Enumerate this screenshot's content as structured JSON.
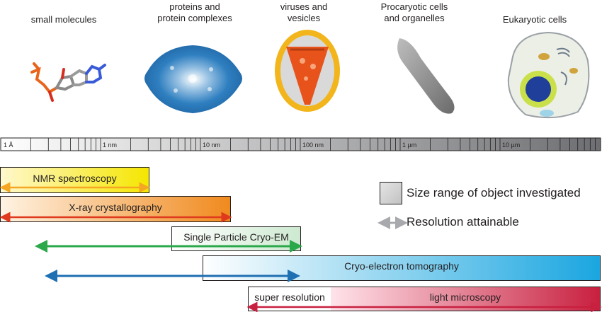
{
  "categories": [
    {
      "id": "small",
      "lines": [
        "small molecules"
      ]
    },
    {
      "id": "proteins",
      "lines": [
        "proteins and",
        "protein complexes"
      ]
    },
    {
      "id": "viruses",
      "lines": [
        "viruses and",
        "vesicles"
      ]
    },
    {
      "id": "procaryotic",
      "lines": [
        "Procaryotic cells",
        "and organelles"
      ]
    },
    {
      "id": "eukaryotic",
      "lines": [
        "Eukaryotic cells"
      ]
    }
  ],
  "scale": {
    "labels": [
      "1 Å",
      "1 nm",
      "10 nm",
      "100 nm",
      "1 µm",
      "10 µm"
    ]
  },
  "methods": {
    "nmr": "NMR spectroscopy",
    "xray": "X-ray crystallography",
    "spa": "Single Particle Cryo-EM",
    "cet": "Cryo-electron tomography",
    "super": "super resolution",
    "light": "light microscopy"
  },
  "legend": {
    "size_range": "Size range of object investigated",
    "resolution": "Resolution attainable"
  },
  "colors": {
    "nmr": "#f5e600",
    "xray": "#f08a1e",
    "spa": "#2aa84a",
    "cet": "#1aa6e0",
    "light": "#c8203f",
    "arrow_gray": "#a7a9ac"
  }
}
